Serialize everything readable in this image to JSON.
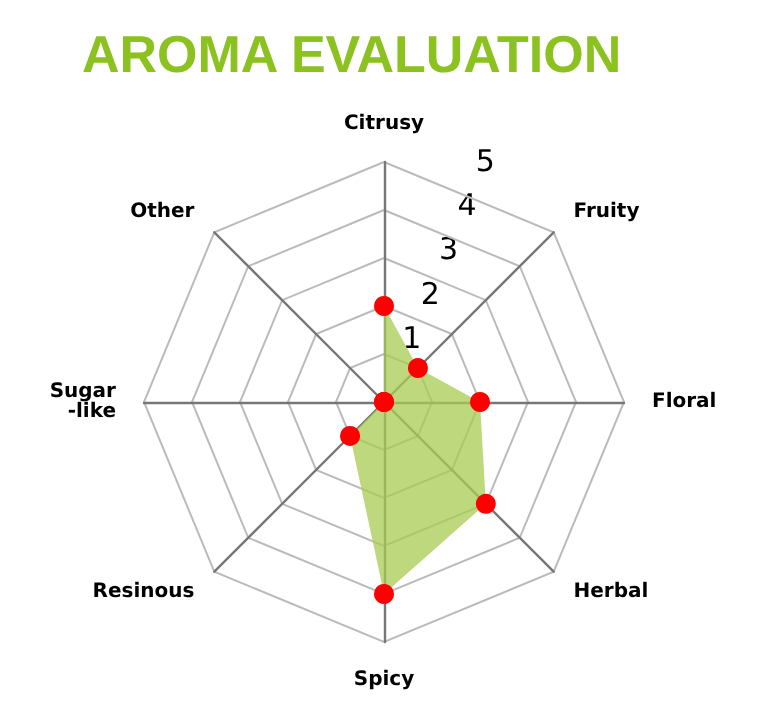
{
  "chart_data": {
    "type": "radar",
    "title": "AROMA EVALUATION",
    "categories": [
      "Citrusy",
      "Fruity",
      "Floral",
      "Herbal",
      "Spicy",
      "Resinous",
      "Sugar-like",
      "Other"
    ],
    "series": [
      {
        "color": "#a8cc52",
        "colors": [
          "#ff0000",
          "#ff0000",
          "#ff0000",
          "#ff0000",
          "#ff0000",
          "#ff0000",
          "#ff0000",
          "#ff0000"
        ],
        "values": [
          2,
          1,
          2,
          3,
          4,
          1,
          0,
          0
        ]
      }
    ],
    "ylim": [
      0,
      5
    ],
    "yticks": [
      1,
      2,
      3,
      4,
      5
    ],
    "grid": true,
    "marker": "circle"
  }
}
